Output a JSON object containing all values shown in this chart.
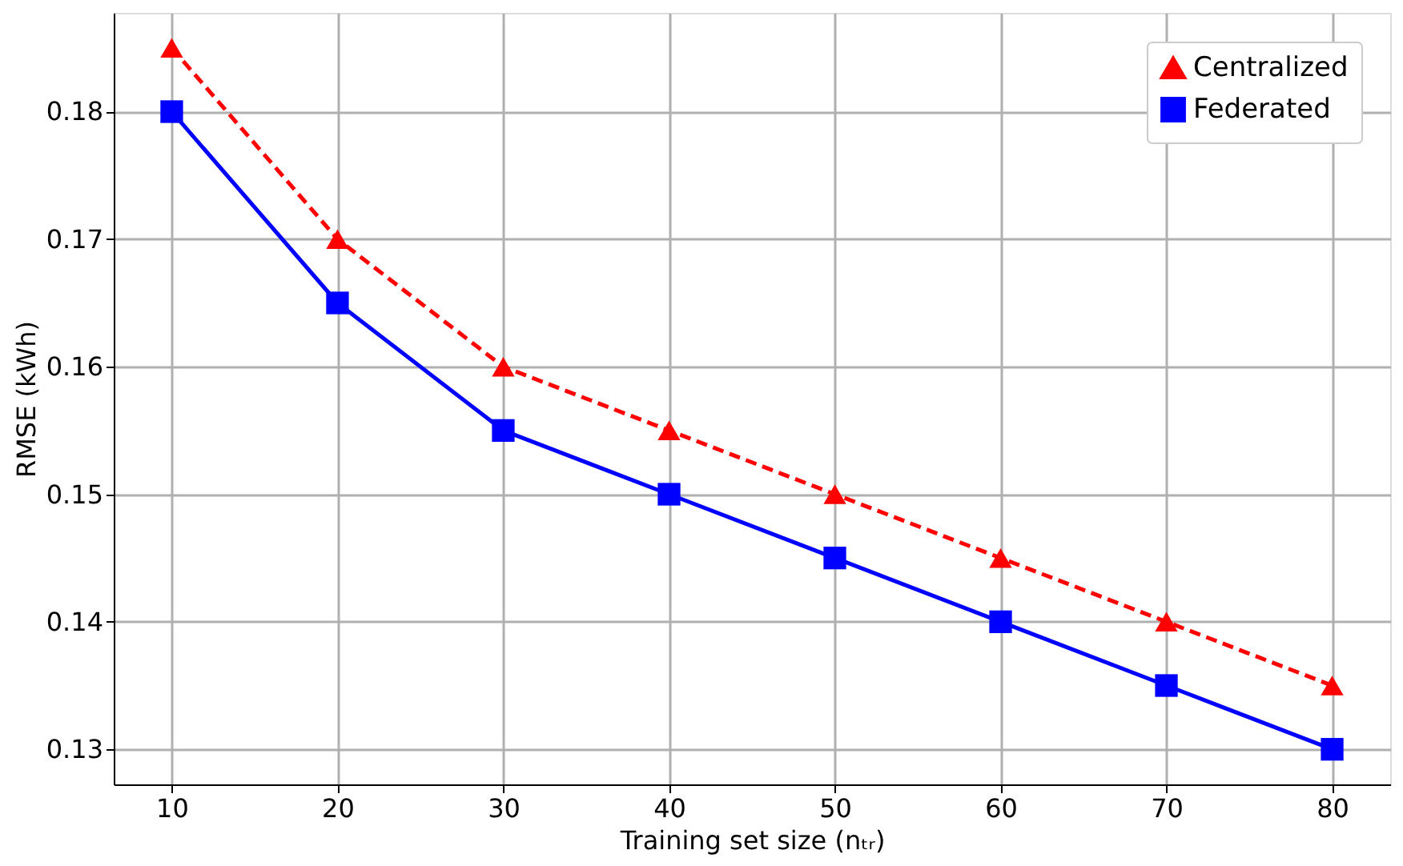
{
  "chart_data": {
    "type": "line",
    "xlabel": "Training set size (nₜᵣ)",
    "ylabel": "RMSE (kWh)",
    "x": [
      10,
      20,
      30,
      40,
      50,
      60,
      70,
      80
    ],
    "series": [
      {
        "name": "Centralized",
        "color": "#ff0000",
        "marker": "triangle",
        "line_style": "dashed",
        "values": [
          0.185,
          0.17,
          0.16,
          0.155,
          0.15,
          0.145,
          0.14,
          0.135
        ]
      },
      {
        "name": "Federated",
        "color": "#0000ff",
        "marker": "square",
        "line_style": "solid",
        "values": [
          0.18,
          0.165,
          0.155,
          0.15,
          0.145,
          0.14,
          0.135,
          0.13
        ]
      }
    ],
    "xlim": [
      6.5,
      83.5
    ],
    "ylim": [
      0.12725,
      0.18775
    ],
    "xticks": [
      10,
      20,
      30,
      40,
      50,
      60,
      70,
      80
    ],
    "yticks": [
      0.13,
      0.14,
      0.15,
      0.16,
      0.17,
      0.18
    ],
    "grid": true,
    "legend": "top right"
  }
}
